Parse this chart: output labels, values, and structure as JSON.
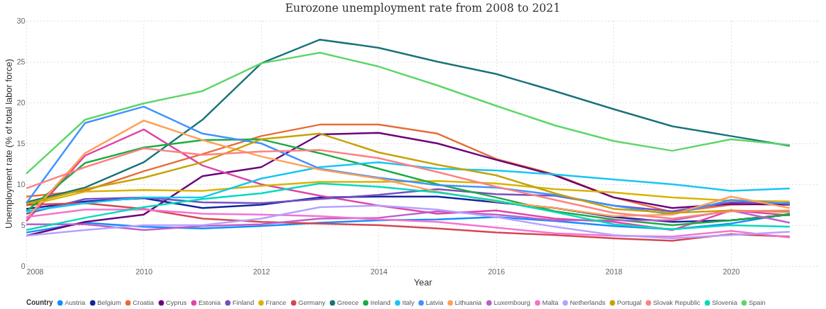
{
  "chart_data": {
    "type": "line",
    "title": "Eurozone unemployment rate from 2008 to 2021",
    "xlabel": "Year",
    "ylabel": "Unemployment rate (% of total labor force)",
    "legend_title": "Country",
    "x": [
      2008,
      2009,
      2010,
      2011,
      2012,
      2013,
      2014,
      2015,
      2016,
      2017,
      2018,
      2019,
      2020,
      2021
    ],
    "series": [
      {
        "name": "Austria",
        "color": "#118dff",
        "values": [
          4.1,
          5.3,
          4.8,
          4.6,
          4.9,
          5.3,
          5.6,
          5.7,
          6.0,
          5.5,
          4.9,
          4.5,
          5.2,
          6.4
        ]
      },
      {
        "name": "Belgium",
        "color": "#12239e",
        "values": [
          7.0,
          7.9,
          8.3,
          7.1,
          7.5,
          8.4,
          8.5,
          8.5,
          7.8,
          7.1,
          6.0,
          5.4,
          5.6,
          6.3
        ]
      },
      {
        "name": "Croatia",
        "color": "#e66c37",
        "values": [
          8.5,
          9.2,
          11.6,
          13.7,
          15.9,
          17.3,
          17.3,
          16.2,
          13.1,
          11.2,
          8.4,
          6.6,
          7.5,
          7.6
        ]
      },
      {
        "name": "Cyprus",
        "color": "#6b007b",
        "values": [
          3.7,
          5.4,
          6.3,
          11.0,
          12.1,
          16.1,
          16.3,
          15.0,
          13.0,
          11.1,
          8.4,
          7.1,
          7.6,
          7.5
        ]
      },
      {
        "name": "Estonia",
        "color": "#e044a7",
        "values": [
          5.5,
          13.5,
          16.7,
          12.3,
          10.0,
          8.6,
          7.4,
          6.4,
          6.8,
          5.8,
          5.4,
          4.4,
          6.8,
          6.2
        ]
      },
      {
        "name": "Finland",
        "color": "#744ec2",
        "values": [
          6.4,
          8.2,
          8.4,
          7.8,
          7.7,
          8.2,
          8.7,
          9.4,
          8.8,
          8.6,
          7.4,
          6.7,
          7.8,
          7.7
        ]
      },
      {
        "name": "France",
        "color": "#d9b300",
        "values": [
          7.4,
          9.1,
          9.3,
          9.2,
          9.8,
          10.3,
          10.3,
          10.4,
          10.1,
          9.4,
          9.0,
          8.4,
          8.0,
          7.9
        ]
      },
      {
        "name": "Germany",
        "color": "#d64550",
        "values": [
          7.5,
          7.7,
          7.0,
          5.8,
          5.4,
          5.2,
          5.0,
          4.6,
          4.1,
          3.8,
          3.4,
          3.1,
          3.9,
          3.6
        ]
      },
      {
        "name": "Greece",
        "color": "#197278",
        "values": [
          7.8,
          9.6,
          12.7,
          17.9,
          24.8,
          27.7,
          26.7,
          25.0,
          23.5,
          21.4,
          19.2,
          17.1,
          15.9,
          14.7
        ]
      },
      {
        "name": "Ireland",
        "color": "#1aab40",
        "values": [
          6.7,
          12.6,
          14.5,
          15.4,
          15.5,
          13.8,
          11.9,
          10.0,
          8.4,
          6.7,
          5.7,
          5.0,
          5.6,
          6.3
        ]
      },
      {
        "name": "Italy",
        "color": "#15c6f4",
        "values": [
          6.7,
          7.7,
          8.4,
          8.4,
          10.7,
          12.1,
          12.7,
          11.9,
          11.7,
          11.2,
          10.6,
          10.0,
          9.2,
          9.5
        ]
      },
      {
        "name": "Latvia",
        "color": "#4092ff",
        "values": [
          7.7,
          17.5,
          19.5,
          16.2,
          15.0,
          11.9,
          10.8,
          9.9,
          9.6,
          8.7,
          7.4,
          6.3,
          8.1,
          7.6
        ]
      },
      {
        "name": "Lithuania",
        "color": "#ffa058",
        "values": [
          5.8,
          13.8,
          17.8,
          15.4,
          13.4,
          11.8,
          10.7,
          9.1,
          7.9,
          7.1,
          6.1,
          6.3,
          8.5,
          7.1
        ]
      },
      {
        "name": "Luxembourg",
        "color": "#be5dc9",
        "values": [
          5.1,
          5.1,
          4.4,
          4.9,
          5.1,
          5.8,
          5.9,
          6.7,
          6.3,
          5.6,
          5.6,
          5.6,
          6.8,
          5.3
        ]
      },
      {
        "name": "Malta",
        "color": "#f472d0",
        "values": [
          6.0,
          6.9,
          6.9,
          6.4,
          6.3,
          6.1,
          5.7,
          5.4,
          4.7,
          4.0,
          3.7,
          3.6,
          4.3,
          3.5
        ]
      },
      {
        "name": "Netherlands",
        "color": "#b5a1ff",
        "values": [
          3.7,
          4.4,
          5.0,
          5.0,
          5.8,
          7.2,
          7.4,
          6.9,
          6.0,
          4.8,
          3.8,
          3.4,
          3.8,
          4.2
        ]
      },
      {
        "name": "Portugal",
        "color": "#c4a200",
        "values": [
          7.6,
          9.4,
          10.8,
          12.7,
          15.5,
          16.2,
          13.9,
          12.4,
          11.1,
          8.9,
          7.0,
          6.5,
          6.8,
          6.6
        ]
      },
      {
        "name": "Slovak Republic",
        "color": "#ff8080",
        "values": [
          9.5,
          12.1,
          14.4,
          13.6,
          14.0,
          14.2,
          13.2,
          11.5,
          9.7,
          8.1,
          6.5,
          5.8,
          6.7,
          6.8
        ]
      },
      {
        "name": "Slovenia",
        "color": "#00dbbc",
        "values": [
          4.4,
          5.9,
          7.2,
          8.2,
          8.9,
          10.1,
          9.7,
          9.0,
          8.0,
          6.6,
          5.1,
          4.5,
          5.0,
          4.8
        ]
      },
      {
        "name": "Spain",
        "color": "#5bd667",
        "values": [
          11.3,
          17.9,
          19.9,
          21.4,
          24.8,
          26.1,
          24.4,
          22.1,
          19.6,
          17.2,
          15.3,
          14.1,
          15.5,
          14.8
        ]
      }
    ],
    "xlim": [
      2008,
      2021.5
    ],
    "xticks": [
      2008,
      2010,
      2012,
      2014,
      2016,
      2018,
      2020
    ],
    "ylim": [
      0,
      30
    ],
    "yticks": [
      0,
      5,
      10,
      15,
      20,
      25,
      30
    ],
    "grid": true,
    "legend": "bottom",
    "marker": "none",
    "line_style": "solid"
  }
}
